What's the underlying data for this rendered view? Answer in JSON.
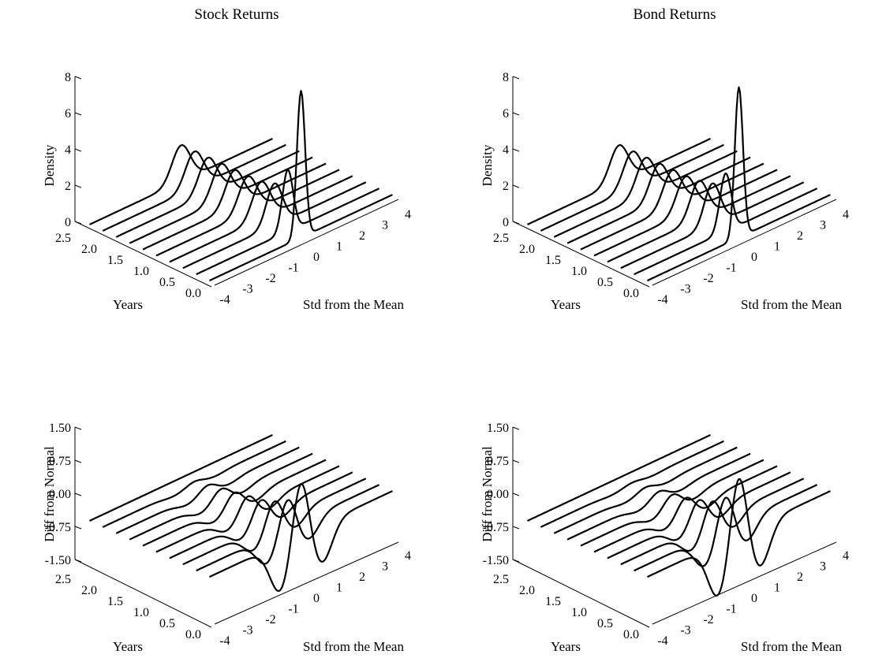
{
  "chart_data": [
    {
      "type": "line",
      "title": "Stock Returns",
      "xlabel": "Std from the Mean",
      "ylabel": "Density",
      "zlabel": "Years",
      "x_ticks": [
        "-4",
        "-3",
        "-2",
        "-1",
        "0",
        "1",
        "2",
        "3",
        "4"
      ],
      "y_ticks": [
        "0",
        "2",
        "4",
        "6",
        "8"
      ],
      "z_ticks": [
        "2.5",
        "2.0",
        "1.5",
        "1.0",
        "0.5",
        "0.0"
      ],
      "xlim": [
        -4,
        4
      ],
      "ylim": [
        0,
        8
      ],
      "zlim": [
        0,
        2.5
      ],
      "horizons": [
        0.125,
        0.375,
        0.625,
        0.875,
        1.125,
        1.375,
        1.625,
        1.875,
        2.125,
        2.375
      ],
      "peak_heights": [
        8.1,
        3.4,
        2.3,
        2.05,
        2.0,
        2.0,
        2.0,
        2.0,
        2.0,
        2.0
      ],
      "peak_location": 0
    },
    {
      "type": "line",
      "title": "Bond Returns",
      "xlabel": "Std from the Mean",
      "ylabel": "Density",
      "zlabel": "Years",
      "x_ticks": [
        "-4",
        "-3",
        "-2",
        "-1",
        "0",
        "1",
        "2",
        "3",
        "4"
      ],
      "y_ticks": [
        "0",
        "2",
        "4",
        "6",
        "8"
      ],
      "z_ticks": [
        "2.5",
        "2.0",
        "1.5",
        "1.0",
        "0.5",
        "0.0"
      ],
      "xlim": [
        -4,
        4
      ],
      "ylim": [
        0,
        8
      ],
      "zlim": [
        0,
        2.5
      ],
      "horizons": [
        0.125,
        0.375,
        0.625,
        0.875,
        1.125,
        1.375,
        1.625,
        1.875,
        2.125,
        2.375
      ],
      "peak_heights": [
        8.3,
        3.2,
        2.3,
        2.1,
        2.0,
        2.0,
        2.0,
        2.0,
        2.0,
        2.0
      ],
      "peak_location": 0
    },
    {
      "type": "line",
      "title": "",
      "xlabel": "Std from the Mean",
      "ylabel": "Diff from Normal",
      "zlabel": "Years",
      "x_ticks": [
        "-4",
        "-3",
        "-2",
        "-1",
        "0",
        "1",
        "2",
        "3",
        "4"
      ],
      "y_ticks": [
        "-1.50",
        "-0.75",
        "0.00",
        "0.75",
        "1.50"
      ],
      "z_ticks": [
        "2.5",
        "2.0",
        "1.5",
        "1.0",
        "0.5",
        "0.0"
      ],
      "xlim": [
        -4,
        4
      ],
      "ylim": [
        -1.5,
        1.5
      ],
      "zlim": [
        0,
        2.5
      ],
      "horizons": [
        0.125,
        0.375,
        0.625,
        0.875,
        1.125,
        1.375,
        1.625,
        1.875,
        2.125,
        2.375
      ],
      "diff_amplitudes": [
        1.0,
        0.55,
        0.4,
        0.3,
        0.25,
        0.2,
        0.15,
        0.1,
        0.05,
        0.0
      ],
      "peak_location": 0
    },
    {
      "type": "line",
      "title": "",
      "xlabel": "Std from the Mean",
      "ylabel": "Diff from Normal",
      "zlabel": "Years",
      "x_ticks": [
        "-4",
        "-3",
        "-2",
        "-1",
        "0",
        "1",
        "2",
        "3",
        "4"
      ],
      "y_ticks": [
        "-1.50",
        "-0.75",
        "0.00",
        "0.75",
        "1.50"
      ],
      "z_ticks": [
        "2.5",
        "2.0",
        "1.5",
        "1.0",
        "0.5",
        "0.0"
      ],
      "xlim": [
        -4,
        4
      ],
      "ylim": [
        -1.5,
        1.5
      ],
      "zlim": [
        0,
        2.5
      ],
      "horizons": [
        0.125,
        0.375,
        0.625,
        0.875,
        1.125,
        1.375,
        1.625,
        1.875,
        2.125,
        2.375
      ],
      "diff_amplitudes": [
        1.1,
        0.6,
        0.4,
        0.3,
        0.22,
        0.16,
        0.1,
        0.06,
        0.03,
        0.0
      ],
      "peak_location": 0
    }
  ]
}
